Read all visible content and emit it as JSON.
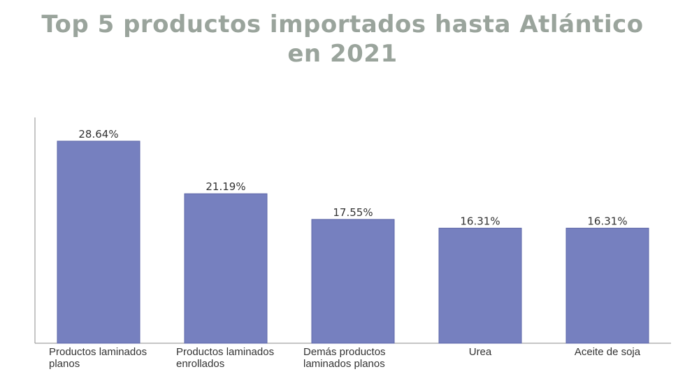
{
  "chart_data": {
    "type": "bar",
    "title": "Top 5 productos importados hasta Atlántico en 2021",
    "categories": [
      [
        "Productos laminados",
        "planos"
      ],
      [
        "Productos laminados",
        "enrollados"
      ],
      [
        "Demás productos",
        "laminados planos"
      ],
      [
        "Urea"
      ],
      [
        "Aceite de soja"
      ]
    ],
    "values": [
      28.64,
      21.19,
      17.55,
      16.31,
      16.31
    ],
    "data_labels": [
      "28.64%",
      "21.19%",
      "17.55%",
      "16.31%",
      "16.31%"
    ],
    "ylim": [
      0,
      32
    ],
    "grid": false,
    "bar_color": "#7680bf"
  }
}
